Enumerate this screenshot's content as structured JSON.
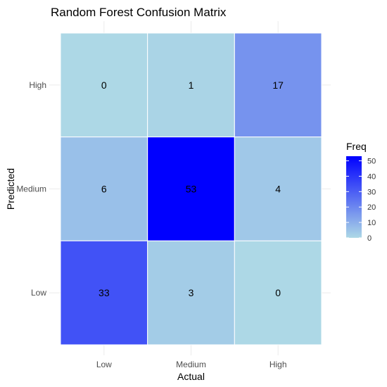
{
  "chart_data": {
    "type": "heatmap",
    "title": "Random Forest Confusion Matrix",
    "xlabel": "Actual",
    "ylabel": "Predicted",
    "x_categories": [
      "Low",
      "Medium",
      "High"
    ],
    "y_categories": [
      "Low",
      "Medium",
      "High"
    ],
    "cells": [
      {
        "actual": "Low",
        "predicted": "High",
        "freq": 0
      },
      {
        "actual": "Medium",
        "predicted": "High",
        "freq": 1
      },
      {
        "actual": "High",
        "predicted": "High",
        "freq": 17
      },
      {
        "actual": "Low",
        "predicted": "Medium",
        "freq": 6
      },
      {
        "actual": "Medium",
        "predicted": "Medium",
        "freq": 53
      },
      {
        "actual": "High",
        "predicted": "Medium",
        "freq": 4
      },
      {
        "actual": "Low",
        "predicted": "Low",
        "freq": 33
      },
      {
        "actual": "Medium",
        "predicted": "Low",
        "freq": 3
      },
      {
        "actual": "High",
        "predicted": "Low",
        "freq": 0
      }
    ],
    "legend": {
      "title": "Freq",
      "ticks": [
        0,
        10,
        20,
        30,
        40,
        50
      ],
      "range": [
        0,
        53
      ],
      "low_color": "#add8e6",
      "high_color": "#0000ff",
      "placement": "right"
    },
    "grid": true
  }
}
